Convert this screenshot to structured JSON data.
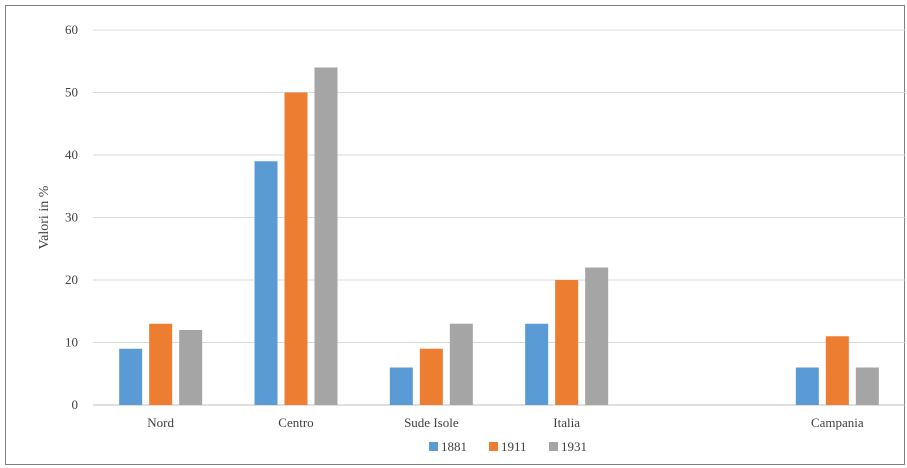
{
  "chart_data": {
    "type": "bar",
    "title": "",
    "xlabel": "",
    "ylabel": "Valori in %",
    "ylim": [
      0,
      60
    ],
    "yticks": [
      0,
      10,
      20,
      30,
      40,
      50,
      60
    ],
    "grid": true,
    "legend_position": "bottom",
    "categories": [
      "Nord",
      "Centro",
      "Sude Isole",
      "Italia",
      "",
      "Campania"
    ],
    "series": [
      {
        "name": "1881",
        "color": "#5b9bd5",
        "values": [
          9,
          39,
          6,
          13,
          null,
          6
        ]
      },
      {
        "name": "1911",
        "color": "#ed7d31",
        "values": [
          13,
          50,
          9,
          20,
          null,
          11
        ]
      },
      {
        "name": "1931",
        "color": "#a5a5a5",
        "values": [
          12,
          54,
          13,
          22,
          null,
          6
        ]
      }
    ]
  }
}
